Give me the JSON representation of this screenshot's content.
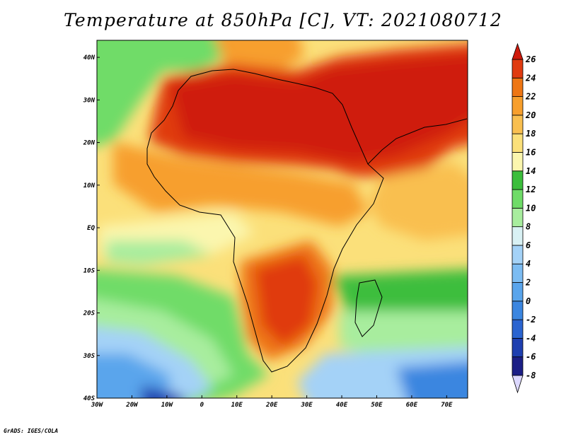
{
  "title": "Temperature at 850hPa [C], VT: 2021080712",
  "credit": "GrADS: IGES/COLA",
  "map": {
    "lon_range": [
      -30,
      76
    ],
    "lat_range": [
      -40,
      44
    ],
    "lat_ticks": [
      {
        "value": 40,
        "label": "40N"
      },
      {
        "value": 30,
        "label": "30N"
      },
      {
        "value": 20,
        "label": "20N"
      },
      {
        "value": 10,
        "label": "10N"
      },
      {
        "value": 0,
        "label": "EQ"
      },
      {
        "value": -10,
        "label": "10S"
      },
      {
        "value": -20,
        "label": "20S"
      },
      {
        "value": -30,
        "label": "30S"
      },
      {
        "value": -40,
        "label": "40S"
      }
    ],
    "lon_ticks": [
      {
        "value": -30,
        "label": "30W"
      },
      {
        "value": -20,
        "label": "20W"
      },
      {
        "value": -10,
        "label": "10W"
      },
      {
        "value": 0,
        "label": "0"
      },
      {
        "value": 10,
        "label": "10E"
      },
      {
        "value": 20,
        "label": "20E"
      },
      {
        "value": 30,
        "label": "30E"
      },
      {
        "value": 40,
        "label": "40E"
      },
      {
        "value": 50,
        "label": "50E"
      },
      {
        "value": 60,
        "label": "60E"
      },
      {
        "value": 70,
        "label": "70E"
      }
    ]
  },
  "colorbar": {
    "levels": [
      -8,
      -6,
      -4,
      -2,
      0,
      2,
      4,
      6,
      8,
      10,
      12,
      14,
      16,
      18,
      20,
      22,
      24,
      26
    ],
    "labels": [
      "-8",
      "-6",
      "-4",
      "-2",
      "0",
      "2",
      "4",
      "6",
      "8",
      "10",
      "12",
      "14",
      "16",
      "18",
      "20",
      "22",
      "24",
      "26"
    ],
    "colors": [
      "#1c1f86",
      "#1e3fb0",
      "#2b64d0",
      "#3b86e0",
      "#5aa5ec",
      "#7cbcf2",
      "#a4d2f7",
      "#d9f1f4",
      "#a8ed9e",
      "#6fdc68",
      "#3cbe3c",
      "#fbf6ae",
      "#fbe07a",
      "#f9bf50",
      "#f79f2d",
      "#ee7614",
      "#e03b10"
    ],
    "below_color": "#dcd8ff",
    "above_color": "#cf1a0c"
  }
}
